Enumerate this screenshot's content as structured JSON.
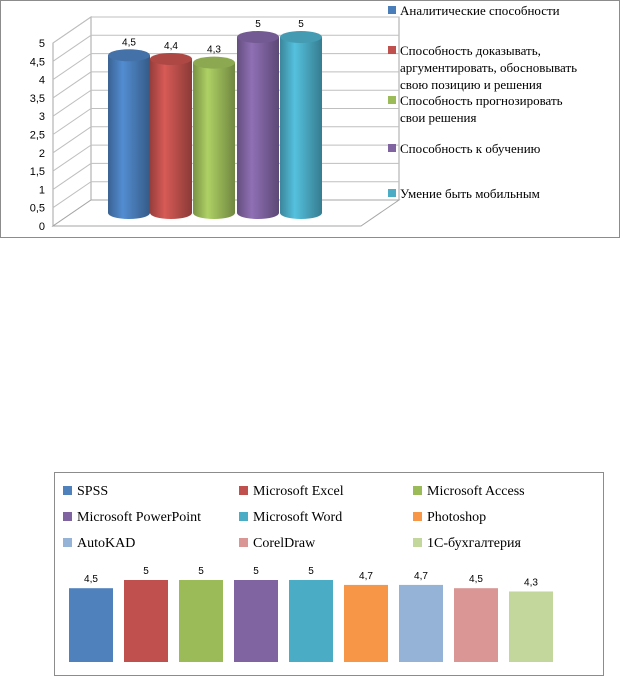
{
  "chart_data": [
    {
      "type": "bar",
      "style": "3d-cylinder",
      "categories": [
        "Аналитические способности",
        "Способность доказывать, аргументировать, обосновывать свою позицию и решения",
        "Способность прогнозировать свои решения",
        "Способность к обучению",
        "Умение быть мобильным"
      ],
      "legend_lines": [
        [
          "Аналитические способности"
        ],
        [
          "Способность доказывать,",
          "аргументировать, обосновывать",
          "свою позицию и решения"
        ],
        [
          "Способность прогнозировать",
          "свои решения"
        ],
        [
          "Способность к обучению"
        ],
        [
          "Умение быть мобильным"
        ]
      ],
      "values": [
        4.5,
        4.4,
        4.3,
        5,
        5
      ],
      "data_labels": [
        "4,5",
        "4,4",
        "4,3",
        "5",
        "5"
      ],
      "colors": [
        "#4a7ebb",
        "#c0504d",
        "#9bbb59",
        "#8064a2",
        "#4bacc6"
      ],
      "ylim": [
        0,
        5
      ],
      "yticks": [
        "0",
        "0,5",
        "1",
        "1,5",
        "2",
        "2,5",
        "3",
        "3,5",
        "4",
        "4,5",
        "5"
      ],
      "grid": true,
      "legend_position": "right"
    },
    {
      "type": "bar",
      "categories": [
        "SPSS",
        "Microsoft Excel",
        "Microsoft Access",
        "Microsoft PowerPoint",
        "Microsoft Word",
        "Photoshop",
        "AutoKAD",
        "CorelDraw",
        "1С-бухгалтерия"
      ],
      "values": [
        4.5,
        5,
        5,
        5,
        5,
        4.7,
        4.7,
        4.5,
        4.3
      ],
      "data_labels": [
        "4,5",
        "5",
        "5",
        "5",
        "5",
        "4,7",
        "4,7",
        "4,5",
        "4,3"
      ],
      "colors": [
        "#4f81bd",
        "#c0504d",
        "#9bbb59",
        "#8064a2",
        "#4bacc6",
        "#f79646",
        "#95b3d7",
        "#d99694",
        "#c3d69b"
      ],
      "legend_position": "top"
    }
  ]
}
